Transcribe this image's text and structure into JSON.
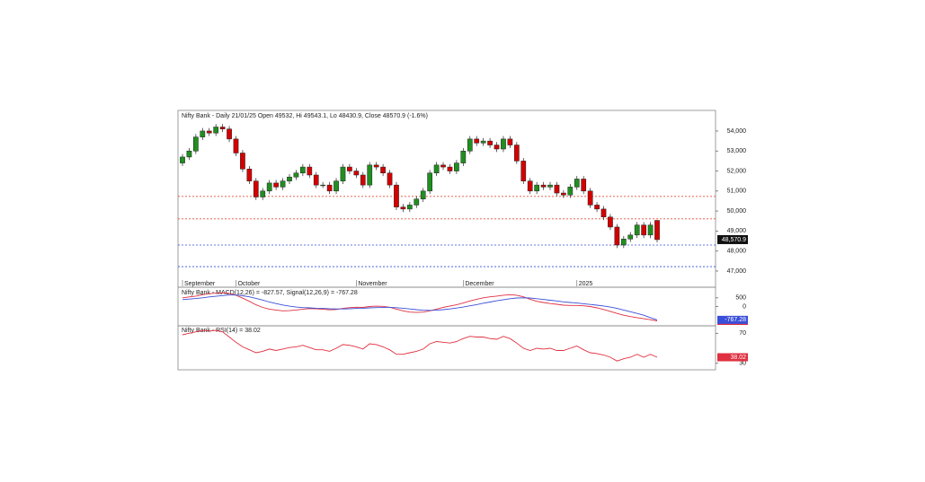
{
  "chart_data": [
    {
      "type": "candlestick",
      "title": "Nifty Bank - Daily 21/01/25 Open 49532, Hi 49543.1, Lo 48430.9, Close 48570.9 (-1.6%)",
      "open": [
        52400,
        52700,
        53000,
        53700,
        54000,
        53900,
        54200,
        54100,
        53600,
        52900,
        52100,
        51500,
        50700,
        51000,
        51400,
        51200,
        51500,
        51700,
        51900,
        52200,
        51800,
        51300,
        51300,
        51000,
        51500,
        52200,
        52000,
        51800,
        51300,
        52300,
        52200,
        51900,
        51300,
        50200,
        50100,
        50300,
        50600,
        51000,
        51900,
        52300,
        52200,
        52000,
        52400,
        53000,
        53600,
        53400,
        53500,
        53300,
        53100,
        53600,
        53300,
        52500,
        51500,
        51000,
        51300,
        51200,
        51300,
        50900,
        50800,
        51200,
        51600,
        51000,
        50300,
        50100,
        49700,
        49200,
        48300,
        48600,
        48800,
        49300,
        48800,
        49532
      ],
      "high": [
        52850,
        53150,
        53850,
        54150,
        54150,
        54350,
        54350,
        54250,
        53750,
        53050,
        52250,
        51650,
        51150,
        51550,
        51550,
        51650,
        51850,
        52050,
        52350,
        52350,
        51950,
        51450,
        51450,
        51650,
        52350,
        52350,
        52150,
        51950,
        52450,
        52450,
        52350,
        52050,
        51450,
        50350,
        50450,
        50750,
        51150,
        52050,
        52450,
        52450,
        52350,
        52550,
        53150,
        53750,
        53750,
        53650,
        53650,
        53450,
        53750,
        53750,
        53450,
        52650,
        51650,
        51450,
        51450,
        51450,
        51450,
        51050,
        51350,
        51750,
        51750,
        51150,
        50450,
        50250,
        49850,
        49350,
        48750,
        48950,
        49450,
        49450,
        49450,
        49543.1
      ],
      "low": [
        52250,
        52550,
        52850,
        53550,
        53750,
        53750,
        53950,
        53450,
        52750,
        51950,
        51350,
        50550,
        50550,
        50850,
        51050,
        51050,
        51350,
        51550,
        51750,
        51650,
        51150,
        51150,
        50850,
        50850,
        51350,
        51850,
        51650,
        51150,
        51150,
        52050,
        51750,
        51150,
        50050,
        49950,
        49950,
        50150,
        50450,
        50850,
        51750,
        52050,
        51850,
        51850,
        52250,
        52850,
        53250,
        53250,
        53150,
        52950,
        52950,
        53150,
        52350,
        51350,
        50850,
        50850,
        51050,
        51050,
        50750,
        50650,
        50650,
        51050,
        50850,
        50150,
        49950,
        49550,
        49050,
        48150,
        48150,
        48450,
        48650,
        48650,
        48650,
        48430.9
      ],
      "close": [
        52700,
        53000,
        53700,
        54000,
        53900,
        54200,
        54100,
        53600,
        52900,
        52100,
        51500,
        50700,
        51000,
        51400,
        51200,
        51500,
        51700,
        51900,
        52200,
        51800,
        51300,
        51300,
        51000,
        51500,
        52200,
        52000,
        51800,
        51300,
        52300,
        52200,
        51900,
        51300,
        50200,
        50100,
        50300,
        50600,
        51000,
        51900,
        52300,
        52200,
        52000,
        52400,
        53000,
        53600,
        53400,
        53500,
        53300,
        53100,
        53600,
        53300,
        52500,
        51500,
        51000,
        51300,
        51200,
        51300,
        50900,
        50800,
        51200,
        51600,
        51000,
        50300,
        50100,
        49700,
        49200,
        48300,
        48600,
        48800,
        49300,
        48800,
        49300,
        48570.9
      ],
      "close_label": "48,570.9",
      "up_color": "#1f8f1f",
      "down_color": "#d40000",
      "x_labels": [
        {
          "index": 0,
          "label": "September"
        },
        {
          "index": 8,
          "label": "October"
        },
        {
          "index": 26,
          "label": "November"
        },
        {
          "index": 42,
          "label": "December"
        },
        {
          "index": 59,
          "label": "2025"
        }
      ],
      "hlines": [
        {
          "value": 50730,
          "color": "#e8503a"
        },
        {
          "value": 49610,
          "color": "#e8503a"
        },
        {
          "value": 48300,
          "color": "#3a4fd8"
        },
        {
          "value": 47220,
          "color": "#3a4fd8"
        }
      ],
      "ylim": [
        46550,
        55030
      ],
      "yticks": [
        {
          "value": 47000,
          "label": "47,000"
        },
        {
          "value": 48000,
          "label": "48,000"
        },
        {
          "value": 49000,
          "label": "49,000"
        },
        {
          "value": 50000,
          "label": "50,000"
        },
        {
          "value": 51000,
          "label": "51,000"
        },
        {
          "value": 52000,
          "label": "52,000"
        },
        {
          "value": 53000,
          "label": "53,000"
        },
        {
          "value": 54000,
          "label": "54,000"
        }
      ]
    },
    {
      "type": "line",
      "title": "Nifty Bank - MACD(12,26) = -827.57, Signal(12,26,9) = -767.28",
      "series": [
        {
          "name": "MACD",
          "color": "#e03040",
          "values": [
            500,
            550,
            600,
            680,
            740,
            770,
            790,
            760,
            650,
            480,
            300,
            100,
            -50,
            -150,
            -200,
            -250,
            -240,
            -200,
            -150,
            -120,
            -130,
            -160,
            -190,
            -170,
            -110,
            -60,
            -40,
            -50,
            0,
            20,
            10,
            -40,
            -150,
            -250,
            -320,
            -340,
            -320,
            -250,
            -150,
            -50,
            30,
            100,
            200,
            320,
            420,
            500,
            560,
            600,
            650,
            680,
            650,
            560,
            420,
            300,
            230,
            170,
            130,
            80,
            60,
            60,
            40,
            0,
            -80,
            -170,
            -280,
            -400,
            -500,
            -580,
            -640,
            -700,
            -760,
            -827.57
          ]
        },
        {
          "name": "Signal",
          "color": "#3a4fd8",
          "values": [
            400,
            430,
            460,
            500,
            550,
            590,
            630,
            660,
            660,
            620,
            560,
            470,
            370,
            260,
            170,
            90,
            20,
            -30,
            -60,
            -80,
            -100,
            -110,
            -130,
            -140,
            -140,
            -130,
            -110,
            -100,
            -80,
            -60,
            -45,
            -45,
            -65,
            -100,
            -140,
            -180,
            -210,
            -220,
            -210,
            -180,
            -140,
            -90,
            -30,
            40,
            110,
            190,
            260,
            330,
            390,
            450,
            490,
            500,
            490,
            450,
            410,
            360,
            320,
            270,
            230,
            200,
            160,
            120,
            80,
            30,
            -30,
            -110,
            -200,
            -300,
            -400,
            -500,
            -640,
            -767.28
          ]
        }
      ],
      "ylim": [
        -1110,
        1110
      ],
      "yticks": [
        500,
        0
      ]
    },
    {
      "type": "line",
      "title": "Nifty Bank - RSI(14) = 38.02",
      "series": [
        {
          "name": "RSI",
          "color": "#e03040",
          "values": [
            68,
            70,
            72,
            74,
            73,
            74,
            72,
            65,
            58,
            52,
            48,
            44,
            46,
            49,
            47,
            49,
            51,
            52,
            54,
            51,
            48,
            48,
            46,
            50,
            55,
            54,
            52,
            49,
            56,
            55,
            52,
            48,
            42,
            42,
            44,
            46,
            49,
            56,
            59,
            58,
            57,
            59,
            63,
            66,
            65,
            65,
            63,
            62,
            66,
            63,
            57,
            50,
            47,
            50,
            49,
            50,
            47,
            47,
            50,
            53,
            48,
            44,
            43,
            41,
            38,
            33,
            36,
            38,
            42,
            38,
            42,
            38.02
          ]
        }
      ],
      "ylim": [
        21.25,
        80
      ],
      "yticks": [
        70,
        30
      ]
    }
  ]
}
